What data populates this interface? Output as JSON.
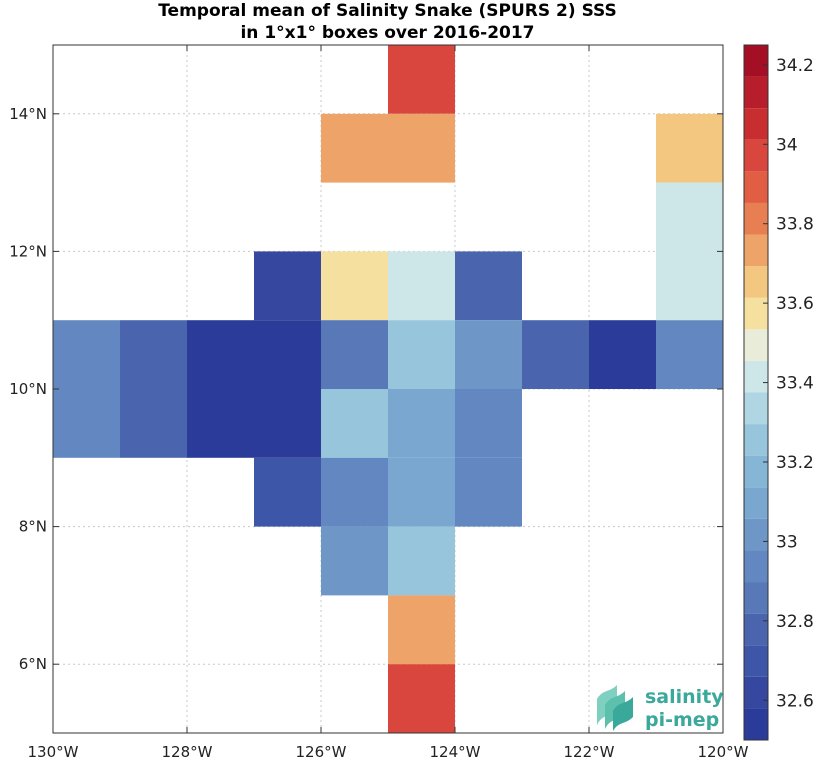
{
  "title_line1": "Temporal mean of Salinity Snake (SPURS 2) SSS",
  "title_line2": "in 1°x1° boxes over 2016-2017",
  "logo": {
    "line1": "salinity",
    "line2": "pi-mep"
  },
  "colors": {
    "ramp": [
      "#2b3b9a",
      "#35479f",
      "#3e56a7",
      "#4a65ae",
      "#5878b8",
      "#6388c1",
      "#6e97c8",
      "#79a7cf",
      "#86b6d6",
      "#97c5dc",
      "#b0d6e3",
      "#cde6e8",
      "#e8ecd8",
      "#f5e0a0",
      "#f3c77f",
      "#eea469",
      "#e87f52",
      "#e15d43",
      "#d8463d",
      "#c82e30",
      "#b81d2b",
      "#a50f26"
    ],
    "cb_min": 32.5,
    "cb_max": 34.25
  },
  "chart_data": {
    "type": "heatmap",
    "xlim": [
      -130,
      -120
    ],
    "ylim": [
      5,
      15
    ],
    "xticks": [
      -130,
      -128,
      -126,
      -124,
      -122,
      -120
    ],
    "yticks": [
      6,
      8,
      10,
      12,
      14
    ],
    "xtick_labels": [
      "130°W",
      "128°W",
      "126°W",
      "124°W",
      "122°W",
      "120°W"
    ],
    "ytick_labels": [
      "6°N",
      "8°N",
      "10°N",
      "12°N",
      "14°N"
    ],
    "grid": true,
    "colorbar": {
      "ticks": [
        32.6,
        32.8,
        33,
        33.2,
        33.4,
        33.6,
        33.8,
        34,
        34.2
      ],
      "tick_labels": [
        "32.6",
        "32.8",
        "33",
        "33.2",
        "33.4",
        "33.6",
        "33.8",
        "34",
        "34.2"
      ]
    },
    "cells": [
      {
        "lon": -125,
        "lat": 14,
        "value": 33.95
      },
      {
        "lon": -126,
        "lat": 13,
        "value": 33.75
      },
      {
        "lon": -125,
        "lat": 13,
        "value": 33.75
      },
      {
        "lon": -121,
        "lat": 13,
        "value": 33.65
      },
      {
        "lon": -121,
        "lat": 12,
        "value": 33.4
      },
      {
        "lon": -127,
        "lat": 11,
        "value": 32.6
      },
      {
        "lon": -126,
        "lat": 11,
        "value": 33.55
      },
      {
        "lon": -125,
        "lat": 11,
        "value": 33.4
      },
      {
        "lon": -124,
        "lat": 11,
        "value": 32.8
      },
      {
        "lon": -121,
        "lat": 11,
        "value": 33.4
      },
      {
        "lon": -130,
        "lat": 10,
        "value": 32.9
      },
      {
        "lon": -129,
        "lat": 10,
        "value": 32.75
      },
      {
        "lon": -128,
        "lat": 10,
        "value": 32.55
      },
      {
        "lon": -127,
        "lat": 10,
        "value": 32.55
      },
      {
        "lon": -126,
        "lat": 10,
        "value": 32.85
      },
      {
        "lon": -125,
        "lat": 10,
        "value": 33.25
      },
      {
        "lon": -124,
        "lat": 10,
        "value": 33.0
      },
      {
        "lon": -123,
        "lat": 10,
        "value": 32.8
      },
      {
        "lon": -122,
        "lat": 10,
        "value": 32.55
      },
      {
        "lon": -121,
        "lat": 10,
        "value": 32.95
      },
      {
        "lon": -130,
        "lat": 9,
        "value": 32.95
      },
      {
        "lon": -129,
        "lat": 9,
        "value": 32.8
      },
      {
        "lon": -128,
        "lat": 9,
        "value": 32.55
      },
      {
        "lon": -127,
        "lat": 9,
        "value": 32.55
      },
      {
        "lon": -126,
        "lat": 9,
        "value": 33.25
      },
      {
        "lon": -125,
        "lat": 9,
        "value": 33.1
      },
      {
        "lon": -124,
        "lat": 9,
        "value": 32.95
      },
      {
        "lon": -127,
        "lat": 8,
        "value": 32.7
      },
      {
        "lon": -126,
        "lat": 8,
        "value": 32.95
      },
      {
        "lon": -125,
        "lat": 8,
        "value": 33.1
      },
      {
        "lon": -124,
        "lat": 8,
        "value": 32.9
      },
      {
        "lon": -126,
        "lat": 7,
        "value": 33.05
      },
      {
        "lon": -125,
        "lat": 7,
        "value": 33.25
      },
      {
        "lon": -125,
        "lat": 6,
        "value": 33.75
      },
      {
        "lon": -125,
        "lat": 5,
        "value": 33.95
      }
    ]
  }
}
